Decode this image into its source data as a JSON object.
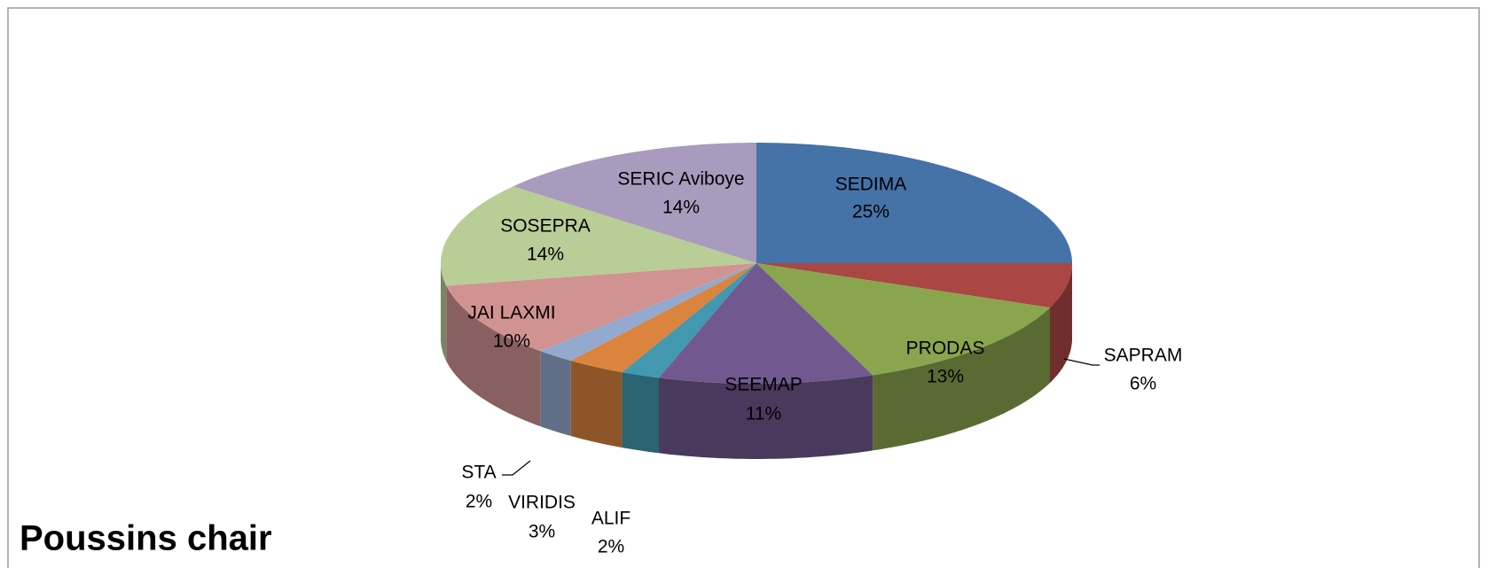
{
  "chart_data": {
    "type": "pie3d",
    "title": "Poussins chair",
    "categories": [
      "SEDIMA",
      "SAPRAM",
      "PRODAS",
      "SEEMAP",
      "ALIF",
      "VIRIDIS",
      "STA",
      "JAI LAXMI",
      "SOSEPRA",
      "SERIC Aviboye"
    ],
    "values": [
      25,
      6,
      13,
      11,
      2,
      3,
      2,
      10,
      14,
      14
    ],
    "value_labels": [
      "25%",
      "6%",
      "13%",
      "11%",
      "2%",
      "3%",
      "2%",
      "10%",
      "14%",
      "14%"
    ],
    "colors": [
      "#4572a7",
      "#aa4643",
      "#89a54e",
      "#71588f",
      "#4198af",
      "#db843d",
      "#93a9cf",
      "#d19392",
      "#b9cd96",
      "#a99bbd"
    ]
  }
}
